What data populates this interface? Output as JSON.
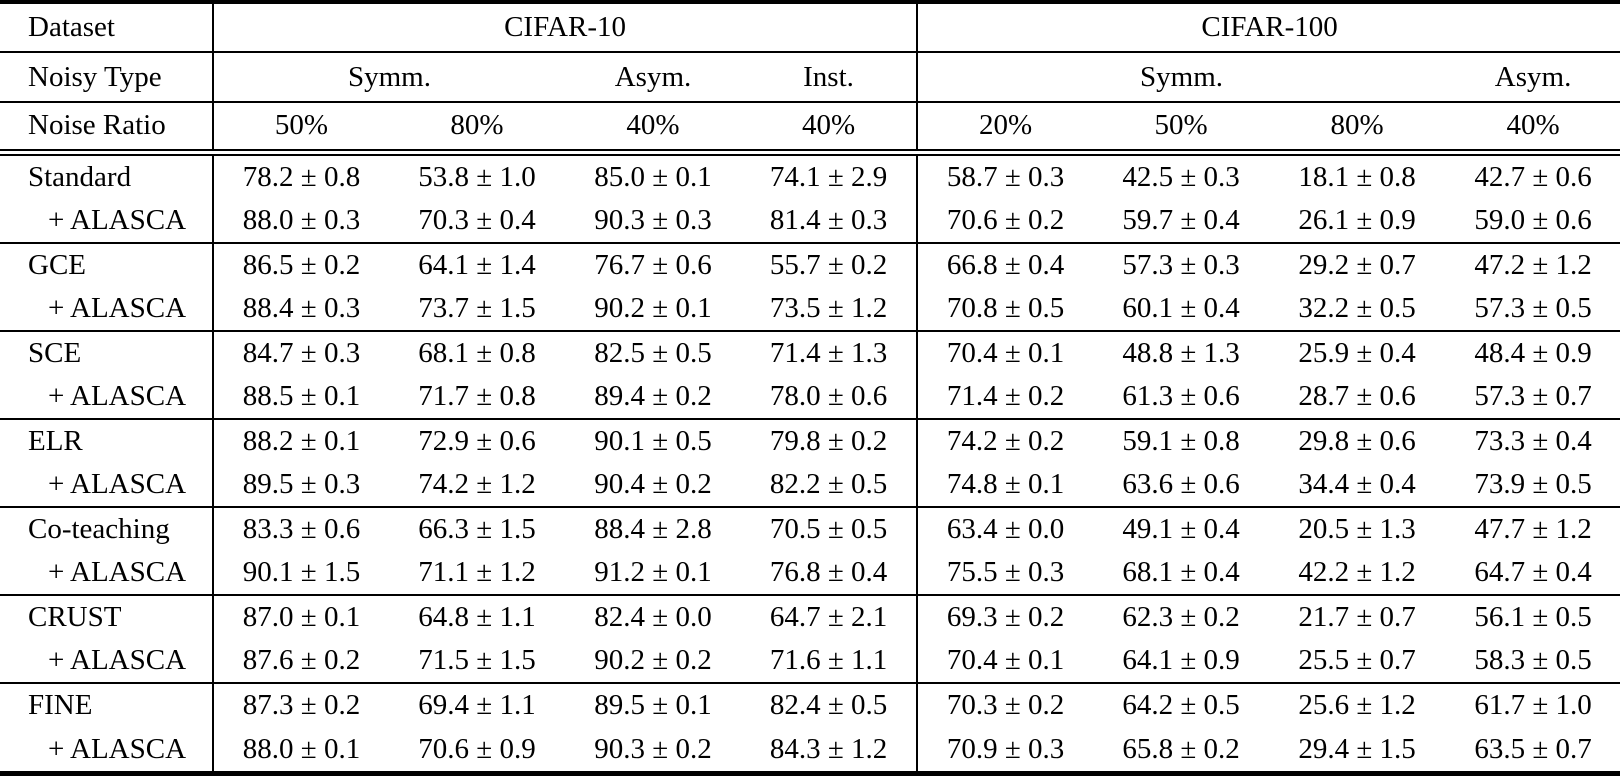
{
  "header": {
    "row1": {
      "label": "Dataset",
      "cifar10": "CIFAR-10",
      "cifar100": "CIFAR-100"
    },
    "row2": {
      "label": "Noisy Type",
      "c10_symm": "Symm.",
      "c10_asym": "Asym.",
      "c10_inst": "Inst.",
      "c100_symm": "Symm.",
      "c100_asym": "Asym."
    },
    "row3": {
      "label": "Noise Ratio",
      "ratios": [
        "50%",
        "80%",
        "40%",
        "40%",
        "20%",
        "50%",
        "80%",
        "40%"
      ]
    }
  },
  "body": {
    "alasca_label": "+ ALASCA",
    "groups": [
      {
        "method": "Standard",
        "baseline": [
          "78.2 ± 0.8",
          "53.8 ± 1.0",
          "85.0 ± 0.1",
          "74.1 ± 2.9",
          "58.7 ± 0.3",
          "42.5 ± 0.3",
          "18.1 ± 0.8",
          "42.7 ± 0.6"
        ],
        "alasca": [
          "88.0 ± 0.3",
          "70.3 ± 0.4",
          "90.3 ± 0.3",
          "81.4 ± 0.3",
          "70.6 ± 0.2",
          "59.7 ± 0.4",
          "26.1 ± 0.9",
          "59.0 ± 0.6"
        ]
      },
      {
        "method": "GCE",
        "baseline": [
          "86.5 ± 0.2",
          "64.1 ± 1.4",
          "76.7 ± 0.6",
          "55.7 ± 0.2",
          "66.8 ± 0.4",
          "57.3 ± 0.3",
          "29.2 ± 0.7",
          "47.2 ± 1.2"
        ],
        "alasca": [
          "88.4 ± 0.3",
          "73.7 ± 1.5",
          "90.2 ± 0.1",
          "73.5 ± 1.2",
          "70.8 ± 0.5",
          "60.1 ± 0.4",
          "32.2 ± 0.5",
          "57.3 ± 0.5"
        ]
      },
      {
        "method": "SCE",
        "baseline": [
          "84.7 ± 0.3",
          "68.1 ± 0.8",
          "82.5 ± 0.5",
          "71.4 ± 1.3",
          "70.4 ± 0.1",
          "48.8 ± 1.3",
          "25.9 ± 0.4",
          "48.4 ± 0.9"
        ],
        "alasca": [
          "88.5 ± 0.1",
          "71.7 ± 0.8",
          "89.4 ± 0.2",
          "78.0 ± 0.6",
          "71.4 ± 0.2",
          "61.3 ± 0.6",
          "28.7 ± 0.6",
          "57.3 ± 0.7"
        ]
      },
      {
        "method": "ELR",
        "baseline": [
          "88.2 ± 0.1",
          "72.9 ± 0.6",
          "90.1 ± 0.5",
          "79.8 ± 0.2",
          "74.2 ± 0.2",
          "59.1 ± 0.8",
          "29.8 ± 0.6",
          "73.3 ± 0.4"
        ],
        "alasca": [
          "89.5 ± 0.3",
          "74.2 ± 1.2",
          "90.4 ± 0.2",
          "82.2 ± 0.5",
          "74.8 ± 0.1",
          "63.6 ± 0.6",
          "34.4 ± 0.4",
          "73.9 ± 0.5"
        ]
      },
      {
        "method": "Co-teaching",
        "baseline": [
          "83.3 ± 0.6",
          "66.3 ± 1.5",
          "88.4 ± 2.8",
          "70.5 ± 0.5",
          "63.4 ± 0.0",
          "49.1 ± 0.4",
          "20.5 ± 1.3",
          "47.7 ± 1.2"
        ],
        "alasca": [
          "90.1 ± 1.5",
          "71.1 ± 1.2",
          "91.2 ± 0.1",
          "76.8 ± 0.4",
          "75.5 ± 0.3",
          "68.1 ± 0.4",
          "42.2 ± 1.2",
          "64.7 ± 0.4"
        ]
      },
      {
        "method": "CRUST",
        "baseline": [
          "87.0 ± 0.1",
          "64.8 ± 1.1",
          "82.4 ± 0.0",
          "64.7 ± 2.1",
          "69.3 ± 0.2",
          "62.3 ± 0.2",
          "21.7 ± 0.7",
          "56.1 ± 0.5"
        ],
        "alasca": [
          "87.6 ± 0.2",
          "71.5 ± 1.5",
          "90.2 ± 0.2",
          "71.6 ± 1.1",
          "70.4 ± 0.1",
          "64.1 ± 0.9",
          "25.5 ± 0.7",
          "58.3 ± 0.5"
        ]
      },
      {
        "method": "FINE",
        "baseline": [
          "87.3 ± 0.2",
          "69.4 ± 1.1",
          "89.5 ± 0.1",
          "82.4 ± 0.5",
          "70.3 ± 0.2",
          "64.2 ± 0.5",
          "25.6 ± 1.2",
          "61.7 ± 1.0"
        ],
        "alasca": [
          "88.0 ± 0.1",
          "70.6 ± 0.9",
          "90.3 ± 0.2",
          "84.3 ± 1.2",
          "70.9 ± 0.3",
          "65.8 ± 0.2",
          "29.4 ± 1.5",
          "63.5 ± 0.7"
        ]
      }
    ]
  },
  "colors": {
    "text": "#000000",
    "background": "#ffffff",
    "rule": "#000000"
  }
}
